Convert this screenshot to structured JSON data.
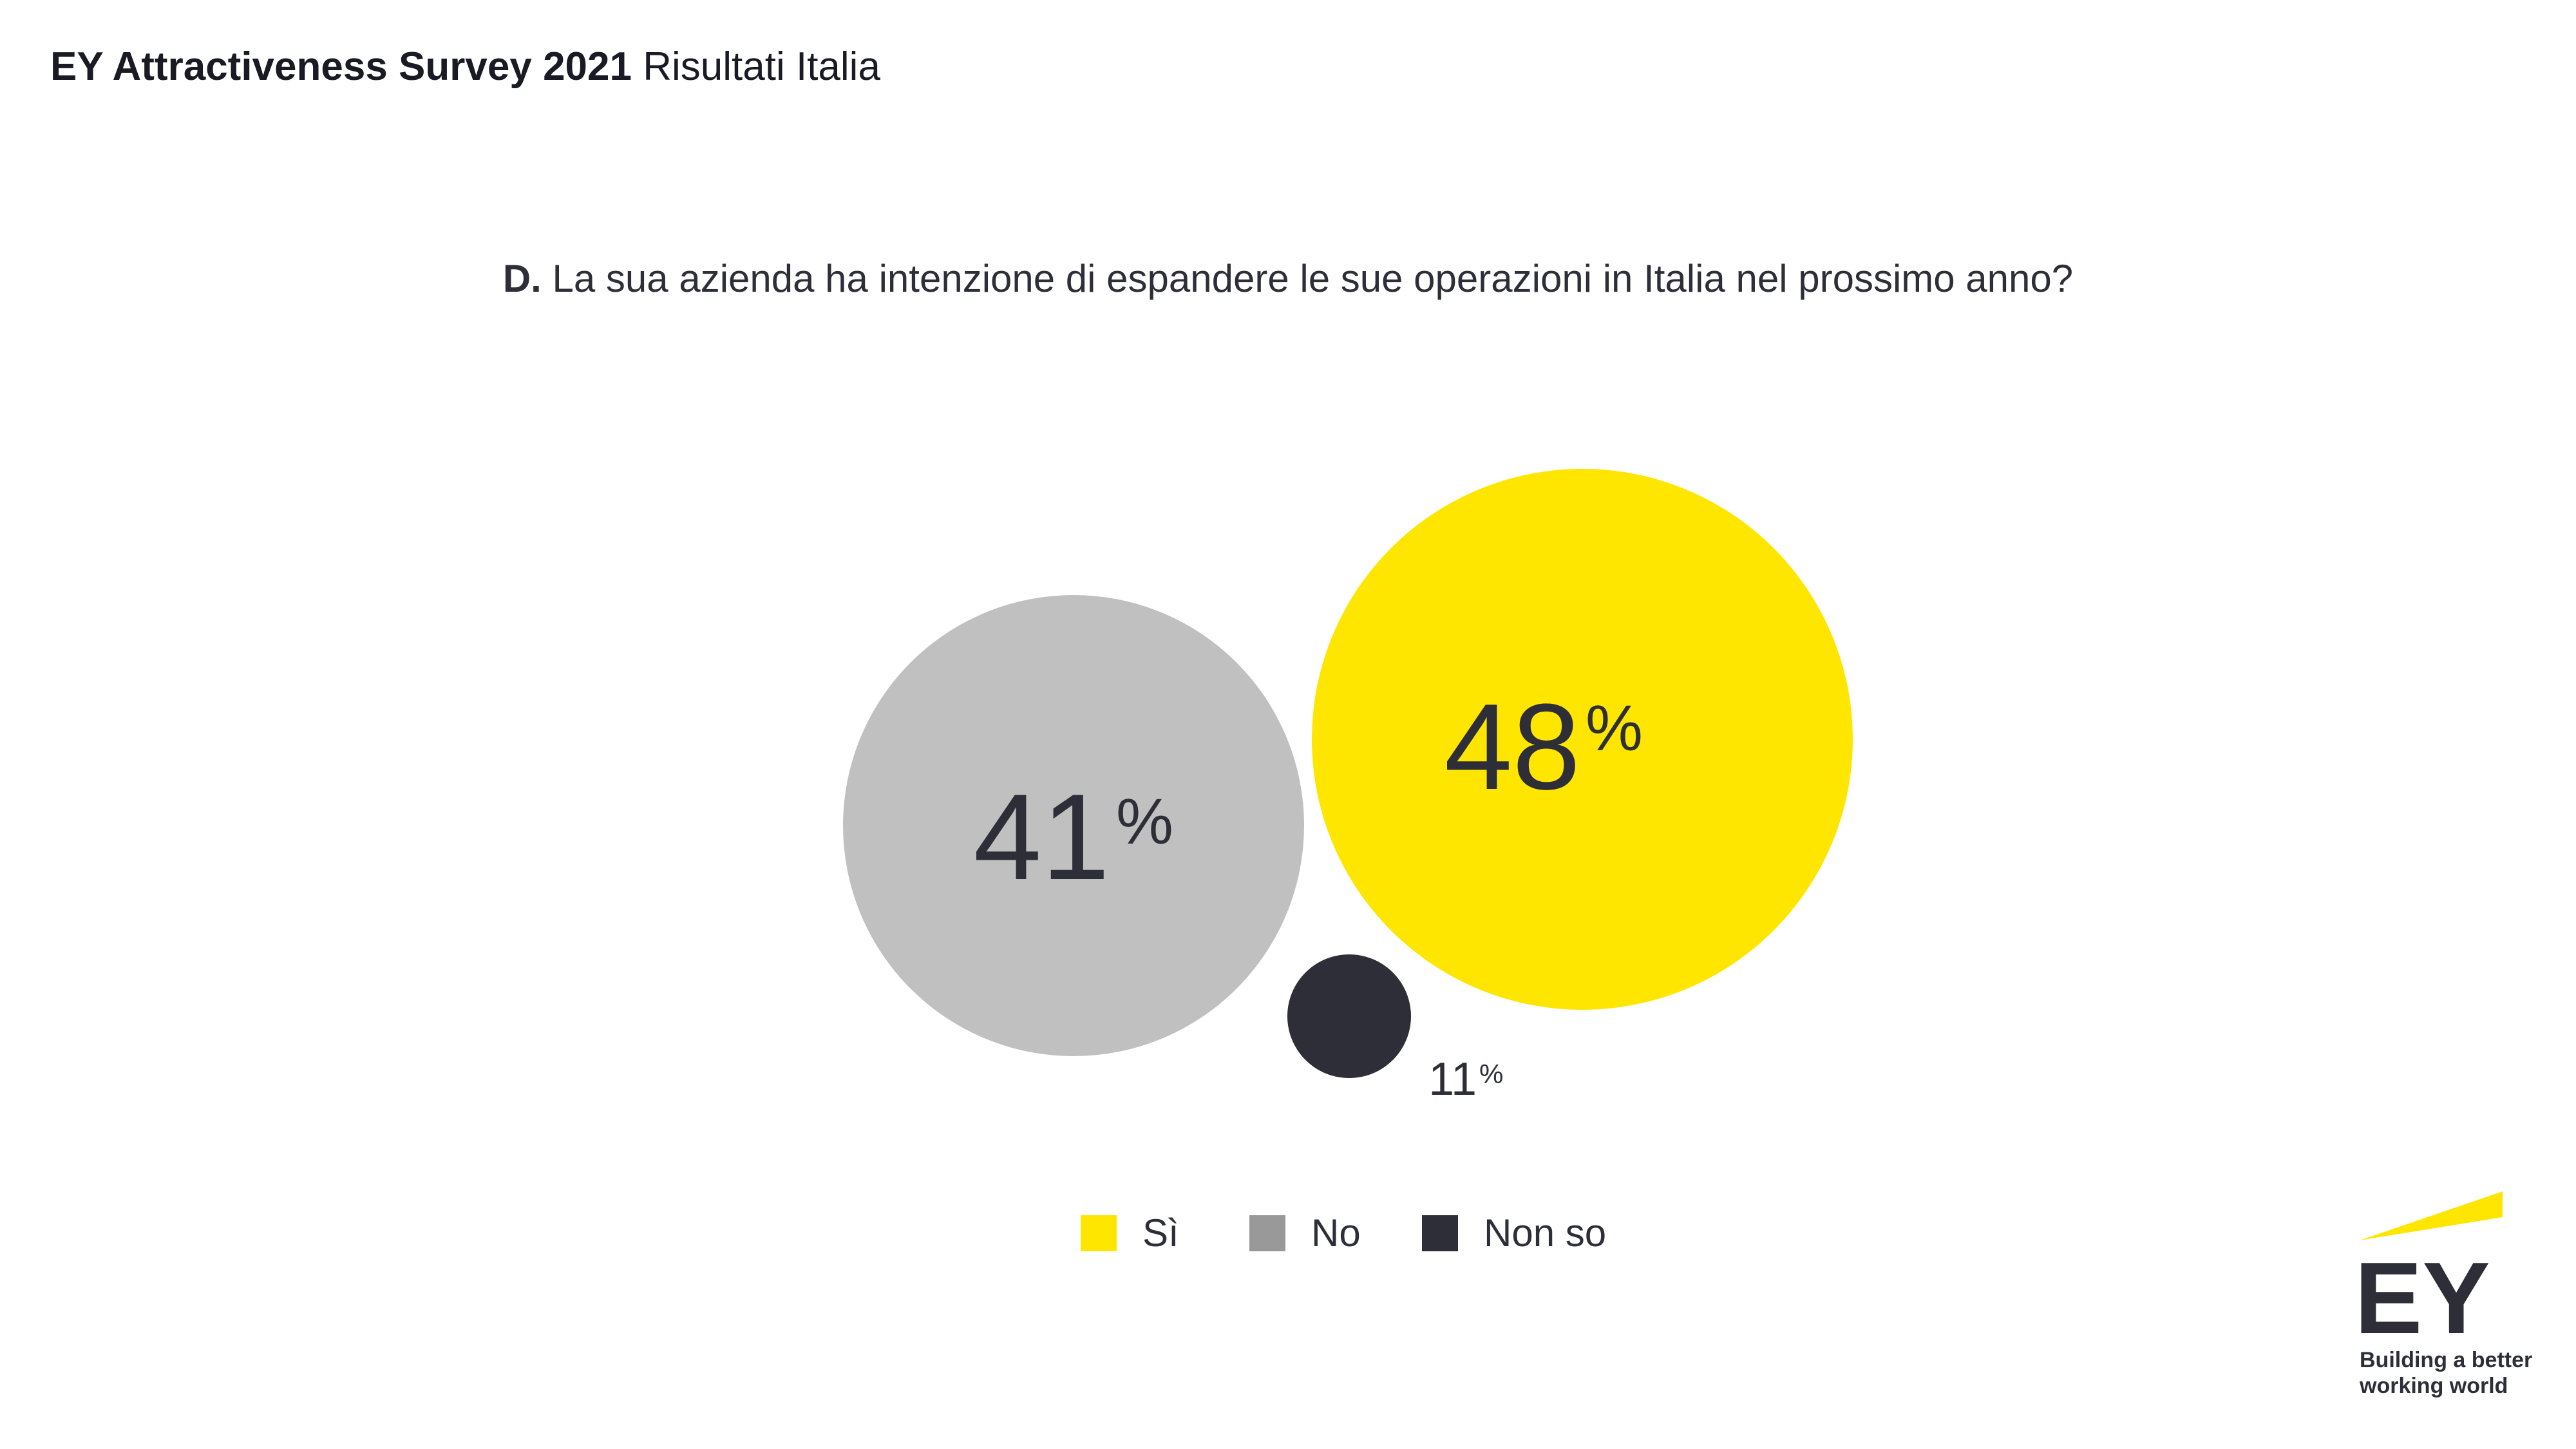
{
  "header": {
    "title_bold": "EY Attractiveness Survey 2021",
    "title_rest": "Risultati Italia"
  },
  "question": {
    "prefix": "D.",
    "text": "La sua azienda ha intenzione di espandere le sue operazioni in Italia nel prossimo anno?"
  },
  "chart_data": {
    "type": "bubble",
    "title": "",
    "series": [
      {
        "name": "Sì",
        "value": 48,
        "label": "48",
        "unit": "%",
        "color": "#ffe600"
      },
      {
        "name": "No",
        "value": 41,
        "label": "41",
        "unit": "%",
        "color": "#c0c0c0"
      },
      {
        "name": "Non so",
        "value": 11,
        "label": "11",
        "unit": "%",
        "color": "#2e2e38"
      }
    ],
    "legend": {
      "placement": "bottom",
      "items": [
        {
          "label": "Sì",
          "color": "#ffe600"
        },
        {
          "label": "No",
          "color": "#999999"
        },
        {
          "label": "Non so",
          "color": "#2e2e38"
        }
      ]
    }
  },
  "logo": {
    "mark": "EY",
    "tagline_line1": "Building a better",
    "tagline_line2": "working world",
    "color_yellow": "#ffe600",
    "color_dark": "#2e2e38"
  },
  "colors": {
    "text_dark": "#2e2e38",
    "accent": "#ffe600"
  }
}
